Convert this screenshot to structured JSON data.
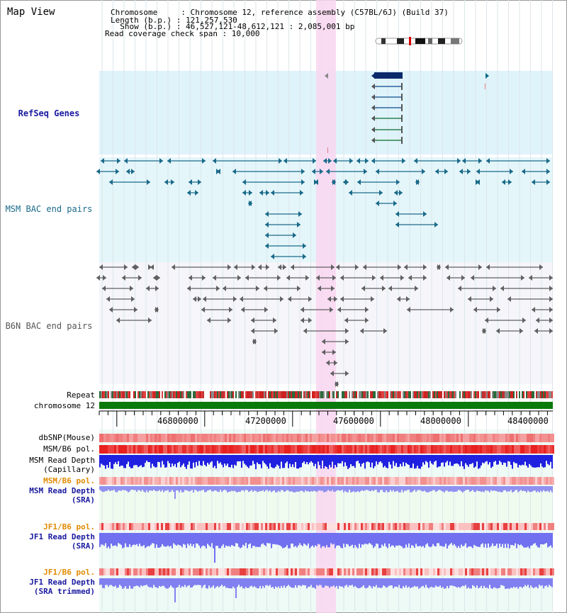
{
  "header": {
    "title": "Map View",
    "info_lines": [
      "Chromosome     : Chromosome 12, reference assembly (C57BL/6J) (Build 37)",
      "Length (b.p.) : 121,257,530",
      "  Show (b.p.) : 46,527,121-48,612,121 : 2,085,001 bp",
      "Read coverage check span : 10,000"
    ]
  },
  "tracks": {
    "refseq": {
      "label": "RefSeq Genes",
      "color": "#1a1aa0"
    },
    "msm_bac": {
      "label": "MSM BAC end pairs",
      "color": "#1a6a8a"
    },
    "b6n_bac": {
      "label": "B6N BAC end pairs",
      "color": "#555555"
    },
    "repeat": {
      "label": "Repeat"
    },
    "chromosome": {
      "label": "chromosome 12"
    },
    "dbsnp": {
      "label": "dbSNP(Mouse)"
    },
    "msm_b6_pol": {
      "label": "MSM/B6 pol."
    },
    "msm_depth_cap": {
      "label_1": "MSM Read Depth",
      "label_2": "(Capillary)"
    },
    "msm_b6_pol_2": {
      "label": "MSM/B6 pol.",
      "color": "#e08a00"
    },
    "msm_depth_sra": {
      "label_1": "MSM Read Depth",
      "label_2": "(SRA)",
      "color": "#1a1aa0"
    },
    "jf1_b6_pol": {
      "label": "JF1/B6 pol.",
      "color": "#e08a00"
    },
    "jf1_depth_sra": {
      "label_1": "JF1 Read Depth",
      "label_2": "(SRA)",
      "color": "#1a1aa0"
    },
    "jf1_b6_pol_2": {
      "label": "JF1/B6 pol.",
      "color": "#e08a00"
    },
    "jf1_depth_trim": {
      "label_1": "JF1 Read Depth",
      "label_2": "(SRA trimmed)",
      "color": "#1a1aa0"
    }
  },
  "axis": {
    "ticks": [
      "46800000",
      "47200000",
      "47600000",
      "48000000",
      "48400000"
    ]
  },
  "colors": {
    "refseq_bg": "#dff3fb",
    "msm_bg": "#e4f6fa",
    "b6n_bg": "#f3f3f8",
    "highlight": "#f9d6f0",
    "chromosome_bar": "#0a7a0a"
  }
}
